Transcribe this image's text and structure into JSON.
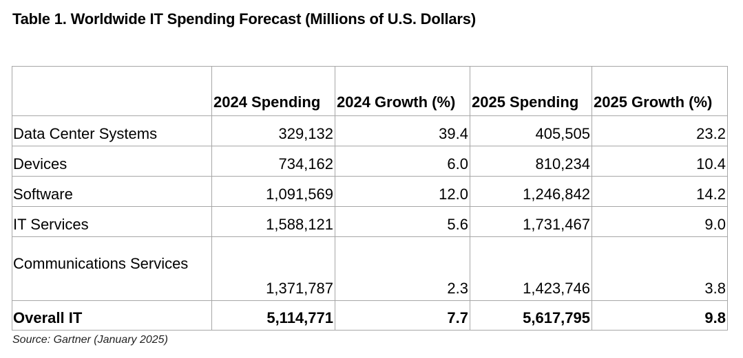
{
  "title": "Table 1. Worldwide IT Spending Forecast (Millions of U.S. Dollars)",
  "columns": [
    "",
    "2024 Spending",
    "2024 Growth (%)",
    "2025 Spending",
    "2025 Growth (%)"
  ],
  "rows": [
    {
      "segment": "Data Center Systems",
      "spend_2024": "329,132",
      "growth_2024": "39.4",
      "spend_2025": "405,505",
      "growth_2025": "23.2"
    },
    {
      "segment": "Devices",
      "spend_2024": "734,162",
      "growth_2024": "6.0",
      "spend_2025": "810,234",
      "growth_2025": "10.4"
    },
    {
      "segment": "Software",
      "spend_2024": "1,091,569",
      "growth_2024": "12.0",
      "spend_2025": "1,246,842",
      "growth_2025": "14.2"
    },
    {
      "segment": "IT Services",
      "spend_2024": "1,588,121",
      "growth_2024": "5.6",
      "spend_2025": "1,731,467",
      "growth_2025": "9.0"
    },
    {
      "segment": "Communications Services",
      "spend_2024": "1,371,787",
      "growth_2024": "2.3",
      "spend_2025": "1,423,746",
      "growth_2025": "3.8"
    },
    {
      "segment": "Overall IT",
      "spend_2024": "5,114,771",
      "growth_2024": "7.7",
      "spend_2025": "5,617,795",
      "growth_2025": "9.8"
    }
  ],
  "source": "Source: Gartner (January 2025)"
}
